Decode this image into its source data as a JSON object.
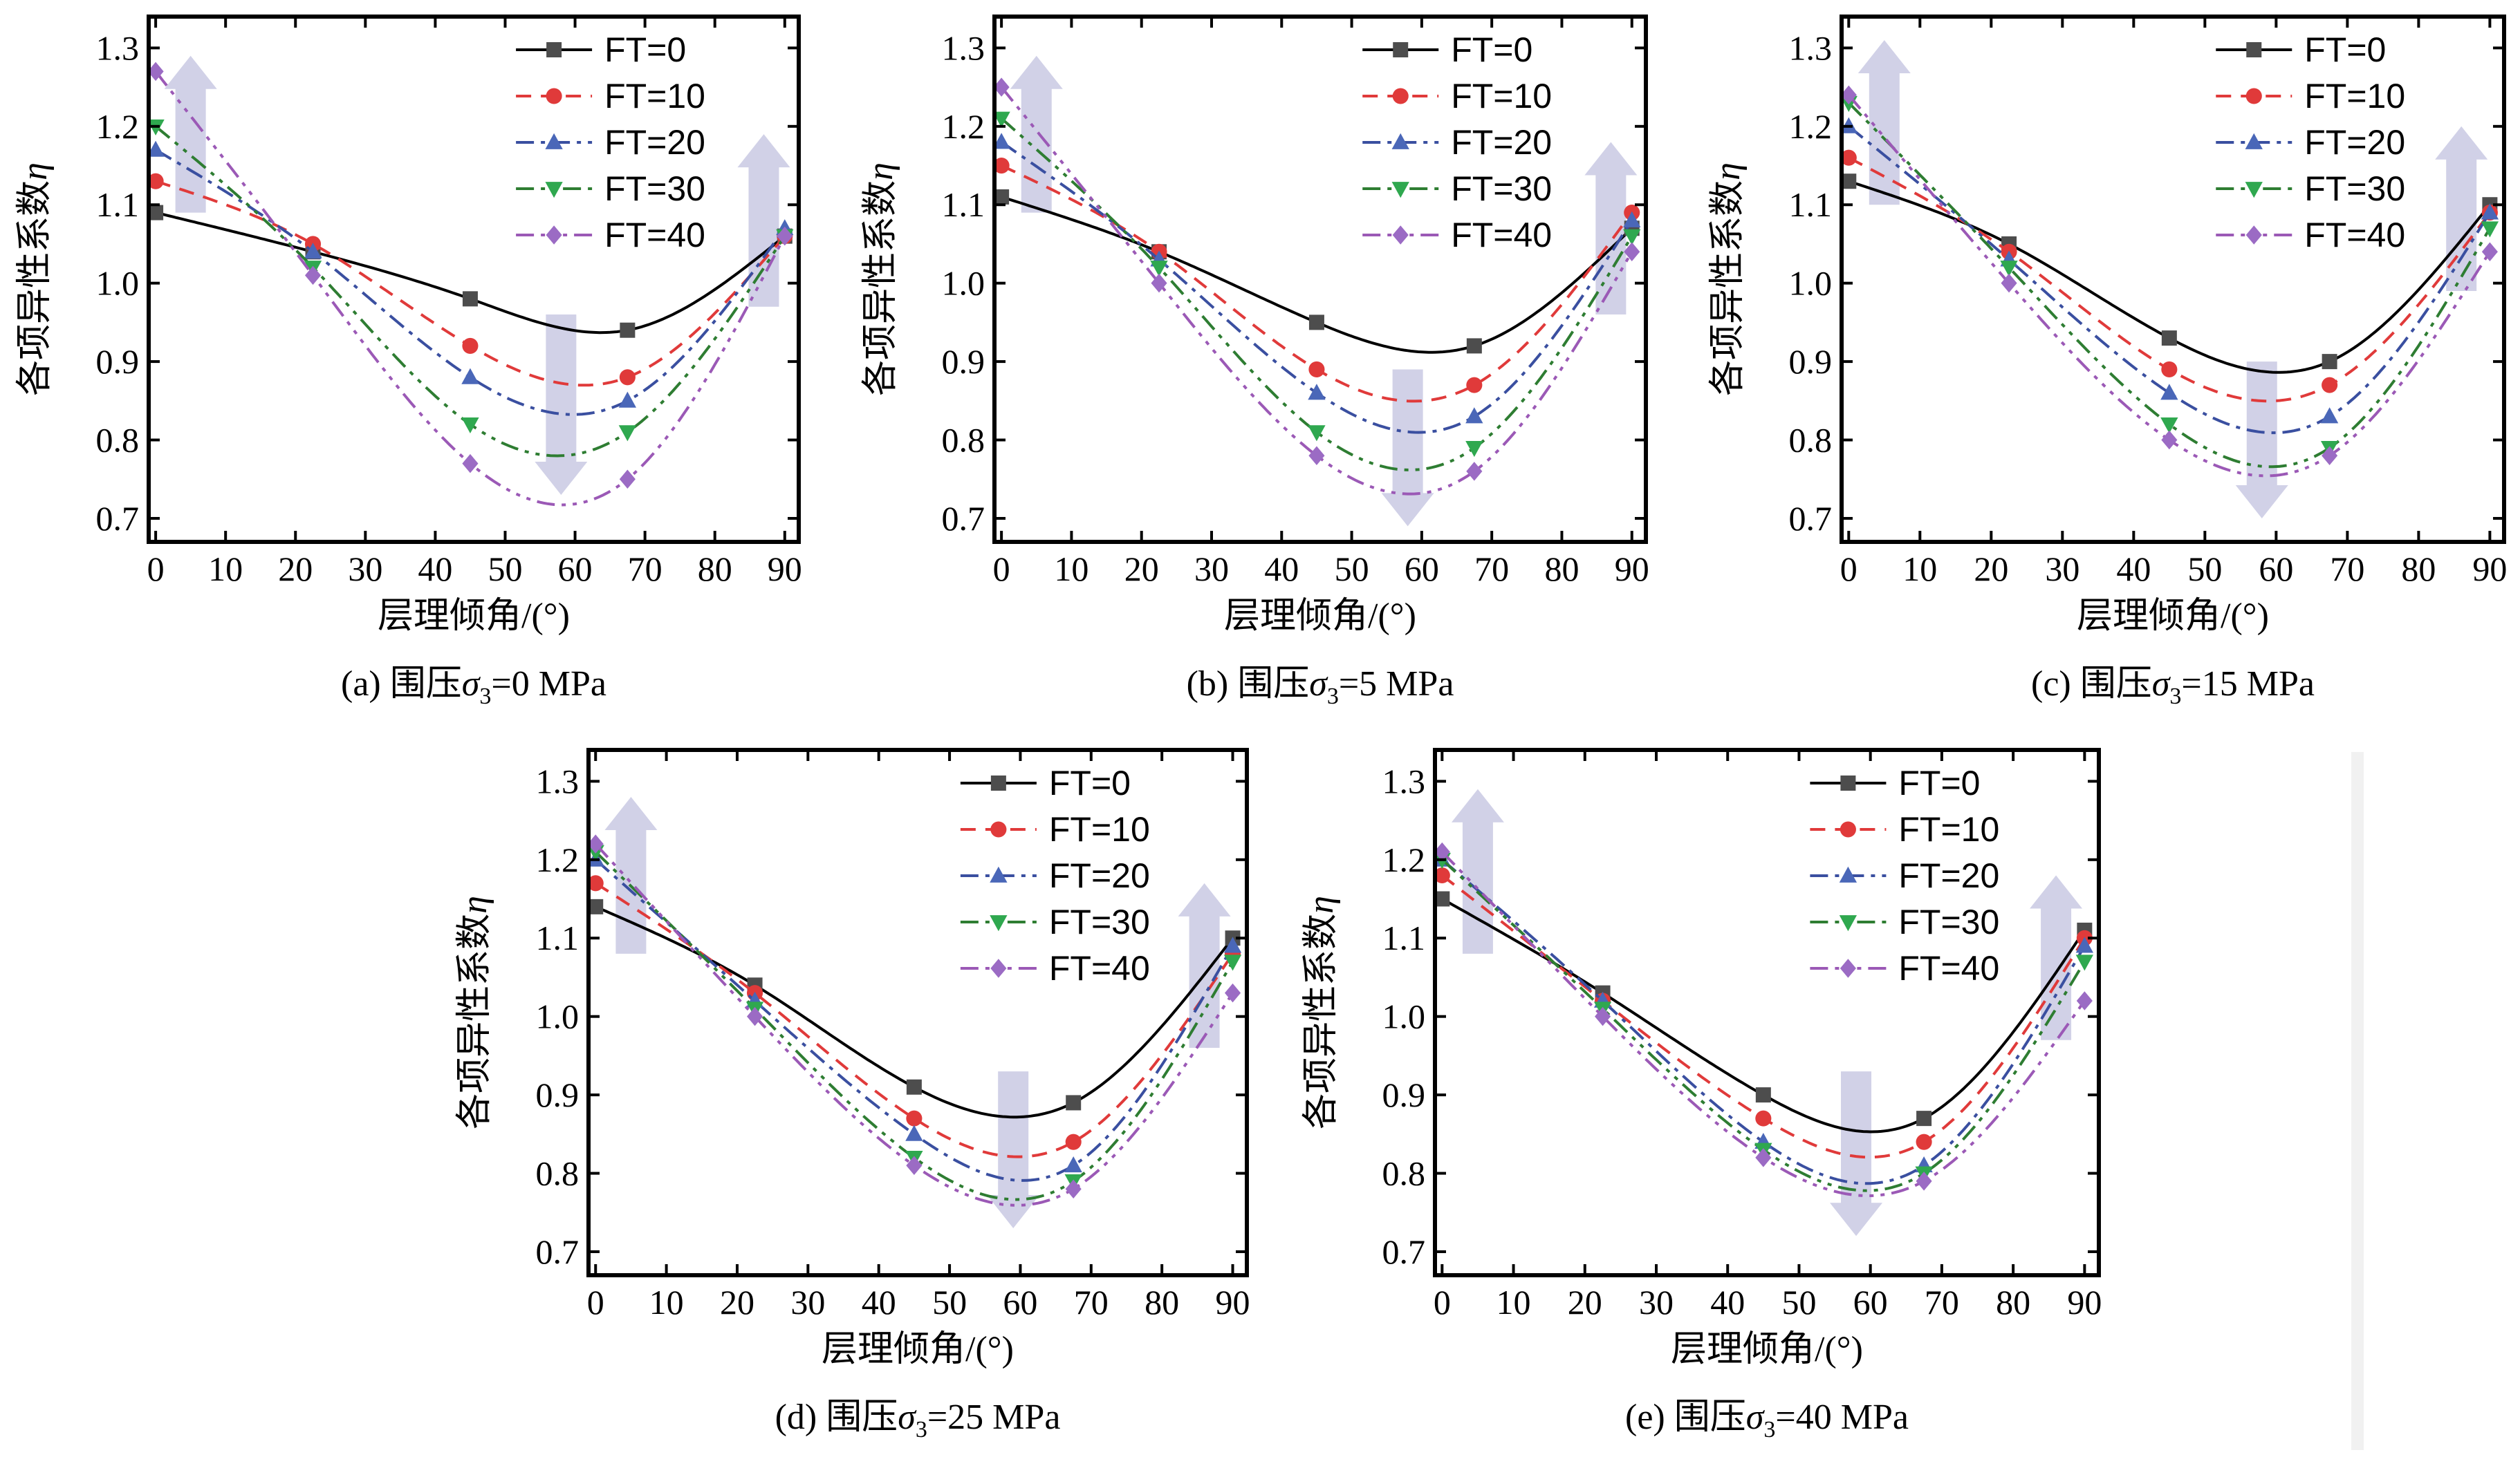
{
  "chart_data": [
    {
      "type": "line",
      "caption": "(a) 围压σ3=0 MPa",
      "caption_parts": {
        "prefix": "(a) 围压",
        "symbol": "σ",
        "sub": "3",
        "suffix": "=0 MPa"
      },
      "xlabel": "层理倾角/(°)",
      "ylabel_text": "各项异性系数",
      "ylabel_symbol": "η",
      "xlim": [
        -1,
        92
      ],
      "ylim": [
        0.67,
        1.34
      ],
      "xticks": [
        0,
        10,
        20,
        30,
        40,
        50,
        60,
        70,
        80,
        90
      ],
      "yticks": [
        0.7,
        0.8,
        0.9,
        1.0,
        1.1,
        1.2,
        1.3
      ],
      "x": [
        0,
        22.5,
        45,
        67.5,
        90
      ],
      "series": [
        {
          "name": "FT=0",
          "values": [
            1.09,
            1.04,
            0.98,
            0.94,
            1.06
          ]
        },
        {
          "name": "FT=10",
          "values": [
            1.13,
            1.05,
            0.92,
            0.88,
            1.06
          ]
        },
        {
          "name": "FT=20",
          "values": [
            1.17,
            1.04,
            0.88,
            0.85,
            1.07
          ]
        },
        {
          "name": "FT=30",
          "values": [
            1.2,
            1.02,
            0.82,
            0.81,
            1.06
          ]
        },
        {
          "name": "FT=40",
          "values": [
            1.27,
            1.01,
            0.77,
            0.75,
            1.06
          ]
        }
      ],
      "arrows": [
        {
          "x": 5,
          "from": 1.09,
          "to": 1.29
        },
        {
          "x": 58,
          "from": 0.96,
          "to": 0.73
        },
        {
          "x": 87,
          "from": 0.97,
          "to": 1.19
        }
      ]
    },
    {
      "type": "line",
      "caption": "(b) 围压σ3=5 MPa",
      "caption_parts": {
        "prefix": "(b) 围压",
        "symbol": "σ",
        "sub": "3",
        "suffix": "=5 MPa"
      },
      "xlabel": "层理倾角/(°)",
      "ylabel_text": "各项异性系数",
      "ylabel_symbol": "η",
      "xlim": [
        -1,
        92
      ],
      "ylim": [
        0.67,
        1.34
      ],
      "xticks": [
        0,
        10,
        20,
        30,
        40,
        50,
        60,
        70,
        80,
        90
      ],
      "yticks": [
        0.7,
        0.8,
        0.9,
        1.0,
        1.1,
        1.2,
        1.3
      ],
      "x": [
        0,
        22.5,
        45,
        67.5,
        90
      ],
      "series": [
        {
          "name": "FT=0",
          "values": [
            1.11,
            1.04,
            0.95,
            0.92,
            1.07
          ]
        },
        {
          "name": "FT=10",
          "values": [
            1.15,
            1.04,
            0.89,
            0.87,
            1.09
          ]
        },
        {
          "name": "FT=20",
          "values": [
            1.18,
            1.03,
            0.86,
            0.83,
            1.08
          ]
        },
        {
          "name": "FT=30",
          "values": [
            1.21,
            1.02,
            0.81,
            0.79,
            1.06
          ]
        },
        {
          "name": "FT=40",
          "values": [
            1.25,
            1.0,
            0.78,
            0.76,
            1.04
          ]
        }
      ],
      "arrows": [
        {
          "x": 5,
          "from": 1.09,
          "to": 1.29
        },
        {
          "x": 58,
          "from": 0.89,
          "to": 0.69
        },
        {
          "x": 87,
          "from": 0.96,
          "to": 1.18
        }
      ]
    },
    {
      "type": "line",
      "caption": "(c) 围压σ3=15 MPa",
      "caption_parts": {
        "prefix": "(c) 围压",
        "symbol": "σ",
        "sub": "3",
        "suffix": "=15 MPa"
      },
      "xlabel": "层理倾角/(°)",
      "ylabel_text": "各项异性系数",
      "ylabel_symbol": "η",
      "xlim": [
        -1,
        92
      ],
      "ylim": [
        0.67,
        1.34
      ],
      "xticks": [
        0,
        10,
        20,
        30,
        40,
        50,
        60,
        70,
        80,
        90
      ],
      "yticks": [
        0.7,
        0.8,
        0.9,
        1.0,
        1.1,
        1.2,
        1.3
      ],
      "x": [
        0,
        22.5,
        45,
        67.5,
        90
      ],
      "series": [
        {
          "name": "FT=0",
          "values": [
            1.13,
            1.05,
            0.93,
            0.9,
            1.1
          ]
        },
        {
          "name": "FT=10",
          "values": [
            1.16,
            1.04,
            0.89,
            0.87,
            1.09
          ]
        },
        {
          "name": "FT=20",
          "values": [
            1.2,
            1.03,
            0.86,
            0.83,
            1.09
          ]
        },
        {
          "name": "FT=30",
          "values": [
            1.23,
            1.02,
            0.82,
            0.79,
            1.07
          ]
        },
        {
          "name": "FT=40",
          "values": [
            1.24,
            1.0,
            0.8,
            0.78,
            1.04
          ]
        }
      ],
      "arrows": [
        {
          "x": 5,
          "from": 1.1,
          "to": 1.31
        },
        {
          "x": 58,
          "from": 0.9,
          "to": 0.7
        },
        {
          "x": 86,
          "from": 0.99,
          "to": 1.2
        }
      ]
    },
    {
      "type": "line",
      "caption": "(d) 围压σ3=25 MPa",
      "caption_parts": {
        "prefix": "(d) 围压",
        "symbol": "σ",
        "sub": "3",
        "suffix": "=25 MPa"
      },
      "xlabel": "层理倾角/(°)",
      "ylabel_text": "各项异性系数",
      "ylabel_symbol": "η",
      "xlim": [
        -1,
        92
      ],
      "ylim": [
        0.67,
        1.34
      ],
      "xticks": [
        0,
        10,
        20,
        30,
        40,
        50,
        60,
        70,
        80,
        90
      ],
      "yticks": [
        0.7,
        0.8,
        0.9,
        1.0,
        1.1,
        1.2,
        1.3
      ],
      "x": [
        0,
        22.5,
        45,
        67.5,
        90
      ],
      "series": [
        {
          "name": "FT=0",
          "values": [
            1.14,
            1.04,
            0.91,
            0.89,
            1.1
          ]
        },
        {
          "name": "FT=10",
          "values": [
            1.17,
            1.03,
            0.87,
            0.84,
            1.08
          ]
        },
        {
          "name": "FT=20",
          "values": [
            1.2,
            1.02,
            0.85,
            0.81,
            1.09
          ]
        },
        {
          "name": "FT=30",
          "values": [
            1.21,
            1.01,
            0.82,
            0.79,
            1.07
          ]
        },
        {
          "name": "FT=40",
          "values": [
            1.22,
            1.0,
            0.81,
            0.78,
            1.03
          ]
        }
      ],
      "arrows": [
        {
          "x": 5,
          "from": 1.08,
          "to": 1.28
        },
        {
          "x": 59,
          "from": 0.93,
          "to": 0.73
        },
        {
          "x": 86,
          "from": 0.96,
          "to": 1.17
        }
      ]
    },
    {
      "type": "line",
      "caption": "(e) 围压σ3=40 MPa",
      "caption_parts": {
        "prefix": "(e) 围压",
        "symbol": "σ",
        "sub": "3",
        "suffix": "=40 MPa"
      },
      "xlabel": "层理倾角/(°)",
      "ylabel_text": "各项异性系数",
      "ylabel_symbol": "η",
      "xlim": [
        -1,
        92
      ],
      "ylim": [
        0.67,
        1.34
      ],
      "xticks": [
        0,
        10,
        20,
        30,
        40,
        50,
        60,
        70,
        80,
        90
      ],
      "yticks": [
        0.7,
        0.8,
        0.9,
        1.0,
        1.1,
        1.2,
        1.3
      ],
      "x": [
        0,
        22.5,
        45,
        67.5,
        90
      ],
      "series": [
        {
          "name": "FT=0",
          "values": [
            1.15,
            1.03,
            0.9,
            0.87,
            1.11
          ]
        },
        {
          "name": "FT=10",
          "values": [
            1.18,
            1.02,
            0.87,
            0.84,
            1.1
          ]
        },
        {
          "name": "FT=20",
          "values": [
            1.2,
            1.02,
            0.84,
            0.81,
            1.09
          ]
        },
        {
          "name": "FT=30",
          "values": [
            1.2,
            1.01,
            0.83,
            0.8,
            1.07
          ]
        },
        {
          "name": "FT=40",
          "values": [
            1.21,
            1.0,
            0.82,
            0.79,
            1.02
          ]
        }
      ],
      "arrows": [
        {
          "x": 5,
          "from": 1.08,
          "to": 1.29
        },
        {
          "x": 58,
          "from": 0.93,
          "to": 0.72
        },
        {
          "x": 86,
          "from": 0.97,
          "to": 1.18
        }
      ]
    }
  ],
  "styles": {
    "series_colors": [
      "#000000",
      "#e03a3a",
      "#3a4fa0",
      "#2e7d32",
      "#9b59b6"
    ],
    "marker_colors": [
      "#4d4d4d",
      "#e03a3a",
      "#4a67b8",
      "#2fa84f",
      "#9b6bc4"
    ],
    "markers": [
      "square",
      "circle",
      "triangle-up",
      "triangle-down",
      "diamond"
    ],
    "dash": [
      "",
      "22 14",
      "26 10 6 10",
      "26 10 6 10 6 10",
      "26 10 6 10 6 10 6 10"
    ],
    "arrow_color": "#c9c9e3",
    "side_bar_color": "#f1f1f1"
  }
}
